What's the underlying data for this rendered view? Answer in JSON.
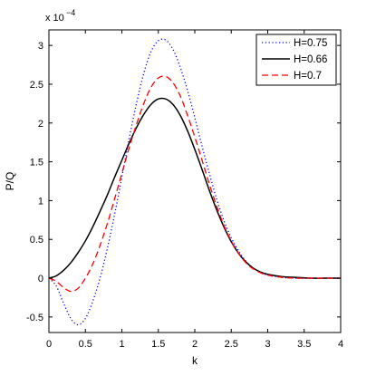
{
  "chart_data": {
    "type": "line",
    "xlabel": "k",
    "ylabel": "P/Q",
    "y_exponent_label": {
      "base": "x 10",
      "exponent": "−4"
    },
    "xlim": [
      0,
      4
    ],
    "ylim": [
      -0.7,
      3.2
    ],
    "xticks": [
      0,
      0.5,
      1,
      1.5,
      2,
      2.5,
      3,
      3.5,
      4
    ],
    "xtick_labels": [
      "0",
      "0.5",
      "1",
      "1.5",
      "2",
      "2.5",
      "3",
      "3.5",
      "4"
    ],
    "yticks": [
      -0.5,
      0,
      0.5,
      1,
      1.5,
      2,
      2.5,
      3
    ],
    "ytick_labels": [
      "-0.5",
      "0",
      "0.5",
      "1",
      "1.5",
      "2",
      "2.5",
      "3"
    ],
    "grid": false,
    "legend_position": "top-right",
    "series": [
      {
        "name": "H=0.75",
        "color": "#0000ff",
        "style": "dotted",
        "x": [
          0,
          0.1,
          0.2,
          0.3,
          0.4,
          0.5,
          0.6,
          0.7,
          0.8,
          0.9,
          1.0,
          1.1,
          1.2,
          1.3,
          1.4,
          1.5,
          1.6,
          1.7,
          1.8,
          1.9,
          2.0,
          2.1,
          2.2,
          2.3,
          2.4,
          2.5,
          2.6,
          2.7,
          2.8,
          2.9,
          3.0,
          3.2,
          3.4,
          3.6,
          3.8,
          4.0
        ],
        "y": [
          0,
          -0.1,
          -0.32,
          -0.52,
          -0.6,
          -0.52,
          -0.3,
          0.0,
          0.38,
          0.82,
          1.3,
          1.8,
          2.25,
          2.64,
          2.92,
          3.06,
          3.07,
          2.95,
          2.72,
          2.42,
          2.07,
          1.7,
          1.35,
          1.02,
          0.74,
          0.52,
          0.35,
          0.22,
          0.13,
          0.08,
          0.04,
          0.01,
          0.0,
          0.0,
          0.0,
          0.0
        ]
      },
      {
        "name": "H=0.66",
        "color": "#000000",
        "style": "solid",
        "x": [
          0,
          0.1,
          0.2,
          0.3,
          0.4,
          0.5,
          0.6,
          0.7,
          0.8,
          0.9,
          1.0,
          1.1,
          1.2,
          1.3,
          1.4,
          1.5,
          1.6,
          1.7,
          1.8,
          1.9,
          2.0,
          2.1,
          2.2,
          2.3,
          2.4,
          2.5,
          2.6,
          2.7,
          2.8,
          2.9,
          3.0,
          3.2,
          3.4,
          3.6,
          3.8,
          4.0
        ],
        "y": [
          0,
          0.03,
          0.1,
          0.2,
          0.33,
          0.48,
          0.66,
          0.86,
          1.07,
          1.3,
          1.52,
          1.74,
          1.94,
          2.11,
          2.24,
          2.31,
          2.31,
          2.24,
          2.1,
          1.9,
          1.66,
          1.4,
          1.13,
          0.88,
          0.66,
          0.47,
          0.32,
          0.21,
          0.13,
          0.08,
          0.05,
          0.02,
          0.01,
          0.0,
          0.0,
          0.0
        ]
      },
      {
        "name": "H=0.7",
        "color": "#ff0000",
        "style": "dashed",
        "x": [
          0,
          0.1,
          0.2,
          0.3,
          0.4,
          0.5,
          0.6,
          0.7,
          0.8,
          0.9,
          1.0,
          1.1,
          1.2,
          1.3,
          1.4,
          1.5,
          1.6,
          1.7,
          1.8,
          1.9,
          2.0,
          2.1,
          2.2,
          2.3,
          2.4,
          2.5,
          2.6,
          2.7,
          2.8,
          2.9,
          3.0,
          3.2,
          3.4,
          3.6,
          3.8,
          4.0
        ],
        "y": [
          0,
          -0.04,
          -0.12,
          -0.17,
          -0.13,
          0.0,
          0.18,
          0.42,
          0.7,
          1.02,
          1.35,
          1.68,
          1.98,
          2.25,
          2.46,
          2.58,
          2.6,
          2.52,
          2.35,
          2.1,
          1.82,
          1.52,
          1.21,
          0.93,
          0.68,
          0.48,
          0.32,
          0.2,
          0.12,
          0.07,
          0.04,
          0.01,
          0.0,
          0.0,
          0.0,
          0.0
        ]
      }
    ]
  }
}
